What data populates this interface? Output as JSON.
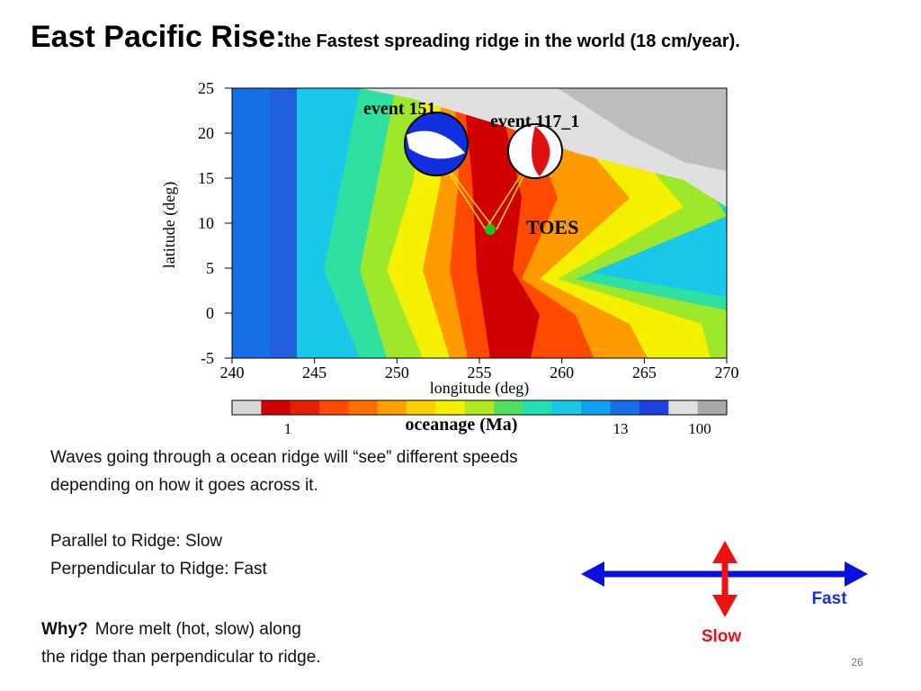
{
  "title": {
    "main": "East Pacific Rise:",
    "sub": "the Fastest spreading ridge in the world (18 cm/year)."
  },
  "figure": {
    "y_label": "latitude (deg)",
    "x_label": "longitude (deg)",
    "y_ticks": [
      "25",
      "20",
      "15",
      "10",
      "5",
      "0",
      "-5"
    ],
    "x_ticks": [
      "240",
      "245",
      "250",
      "255",
      "260",
      "265",
      "270"
    ],
    "annotations": [
      "event 151",
      "event 117_1",
      "TOES"
    ],
    "colorbar": {
      "label": "oceanage (Ma)",
      "ticks": [
        "1",
        "13",
        "100"
      ]
    }
  },
  "body": {
    "paragraph": [
      "Waves going through a ocean ridge will  “see” different speeds",
      "depending on how it goes across it."
    ],
    "lines": [
      "Parallel to Ridge: Slow",
      "Perpendicular to Ridge:  Fast"
    ],
    "why": {
      "lead": "Why?",
      "rest": "More melt (hot, slow) along",
      "line2": "the ridge than perpendicular to ridge."
    }
  },
  "diagram": {
    "fast": "Fast",
    "slow": "Slow"
  },
  "page_number": "26"
}
